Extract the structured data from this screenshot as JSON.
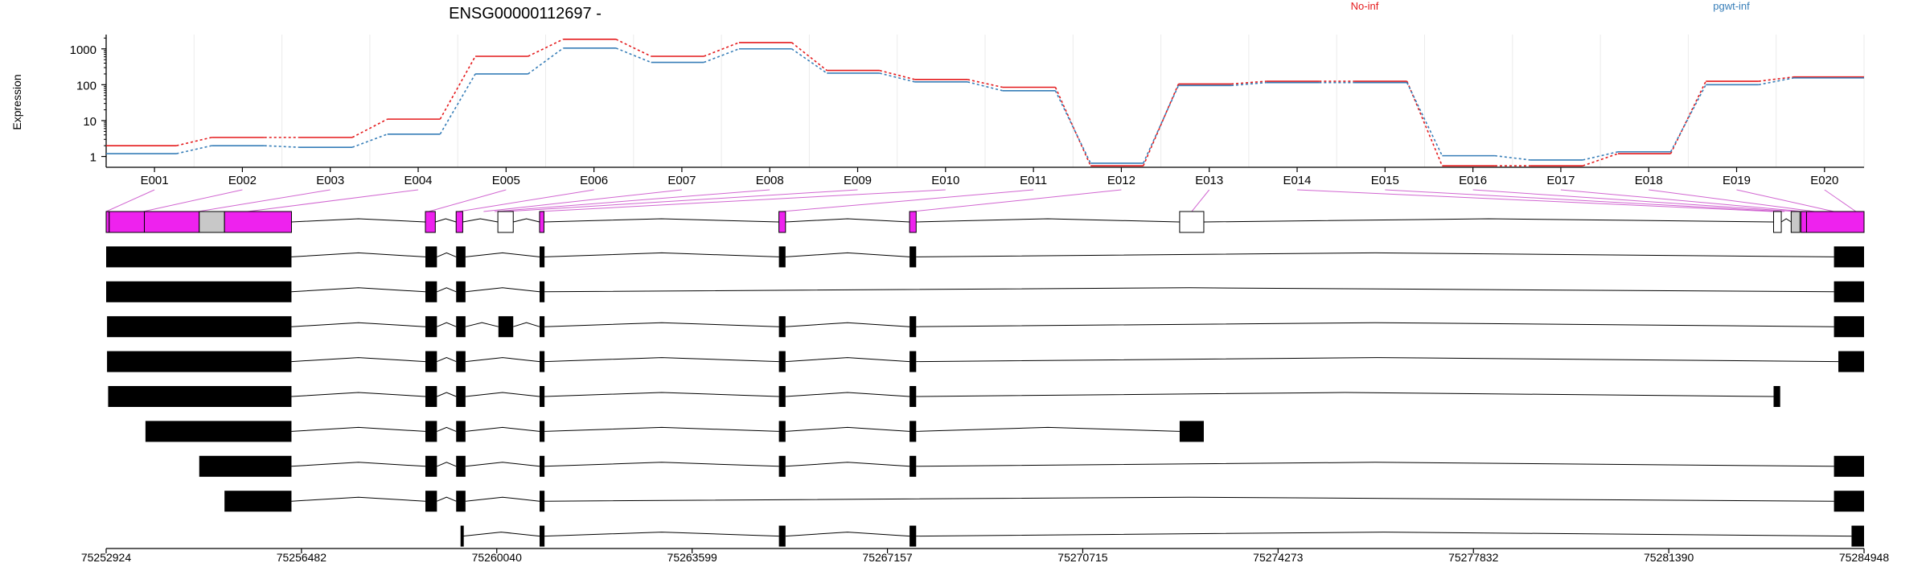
{
  "chart_data": {
    "type": "line",
    "title": "ENSG00000112697 -",
    "ylabel": "Expression",
    "yscale": "log",
    "yticks": [
      1,
      10,
      100,
      1000
    ],
    "ylim": [
      0.5,
      2500
    ],
    "categories": [
      "E001",
      "E002",
      "E003",
      "E004",
      "E005",
      "E006",
      "E007",
      "E008",
      "E009",
      "E010",
      "E011",
      "E012",
      "E013",
      "E014",
      "E015",
      "E016",
      "E017",
      "E018",
      "E019",
      "E020"
    ],
    "legend": {
      "placement": "top-right",
      "entries": [
        "No-inf",
        "pgwt-inf"
      ]
    },
    "series": [
      {
        "name": "No-inf",
        "color": "#e41a1c",
        "values": [
          2.0,
          3.4,
          3.4,
          11,
          620,
          1850,
          620,
          1500,
          250,
          140,
          85,
          0.55,
          105,
          125,
          125,
          0.55,
          0.55,
          1.2,
          125,
          165
        ]
      },
      {
        "name": "pgwt-inf",
        "color": "#377eb8",
        "values": [
          1.2,
          2.0,
          1.8,
          4.2,
          200,
          1050,
          420,
          1000,
          210,
          120,
          68,
          0.65,
          95,
          115,
          115,
          1.05,
          0.8,
          1.35,
          100,
          155
        ]
      }
    ],
    "gene_model": {
      "xlim": [
        75252924,
        75284948
      ],
      "xticks": [
        75252924,
        75256482,
        75260040,
        75263599,
        75267157,
        75270715,
        75274273,
        75277832,
        75281390,
        75284948
      ],
      "exon_bins": [
        {
          "start": 75252924,
          "end": 75252980,
          "state": "sig"
        },
        {
          "start": 75252980,
          "end": 75253620,
          "state": "sig"
        },
        {
          "start": 75253620,
          "end": 75254620,
          "state": "sig"
        },
        {
          "start": 75254620,
          "end": 75255080,
          "state": "none"
        },
        {
          "start": 75255080,
          "end": 75256300,
          "state": "sig"
        },
        {
          "start": 75258740,
          "end": 75258920,
          "state": "sig"
        },
        {
          "start": 75259300,
          "end": 75259420,
          "state": "sig"
        },
        {
          "start": 75260060,
          "end": 75260340,
          "state": "empty"
        },
        {
          "start": 75260820,
          "end": 75260900,
          "state": "sig"
        },
        {
          "start": 75265180,
          "end": 75265300,
          "state": "sig"
        },
        {
          "start": 75267560,
          "end": 75267680,
          "state": "sig"
        },
        {
          "start": 75272480,
          "end": 75272920,
          "state": "empty"
        },
        {
          "start": 75283300,
          "end": 75283440,
          "state": "empty"
        },
        {
          "start": 75283620,
          "end": 75283780,
          "state": "none"
        },
        {
          "start": 75283800,
          "end": 75283900,
          "state": "sig"
        },
        {
          "start": 75283900,
          "end": 75284948,
          "state": "sig"
        }
      ],
      "exon_label_anchor": [
        75252924,
        75253600,
        75254600,
        75255500,
        75258800,
        75259350,
        75259800,
        75260000,
        75260200,
        75260820,
        75265240,
        75267620,
        75272700,
        75283300,
        75283500,
        75283700,
        75283850,
        75284050,
        75284400,
        75284800
      ],
      "transcripts": [
        {
          "exons": [
            [
              75252924,
              75256300
            ],
            [
              75258740,
              75258950
            ],
            [
              75259300,
              75259470
            ],
            [
              75260820,
              75260910
            ],
            [
              75265180,
              75265300
            ],
            [
              75267560,
              75267680
            ],
            [
              75284400,
              75284948
            ]
          ]
        },
        {
          "exons": [
            [
              75252924,
              75256300
            ],
            [
              75258740,
              75258950
            ],
            [
              75259300,
              75259470
            ],
            [
              75260820,
              75260910
            ],
            [
              75284400,
              75284948
            ]
          ]
        },
        {
          "exons": [
            [
              75252940,
              75256300
            ],
            [
              75258740,
              75258950
            ],
            [
              75259300,
              75259470
            ],
            [
              75260070,
              75260340
            ],
            [
              75260820,
              75260910
            ],
            [
              75265180,
              75265300
            ],
            [
              75267560,
              75267680
            ],
            [
              75284400,
              75284948
            ]
          ]
        },
        {
          "exons": [
            [
              75252940,
              75256300
            ],
            [
              75258740,
              75258950
            ],
            [
              75259300,
              75259470
            ],
            [
              75260820,
              75260910
            ],
            [
              75265180,
              75265300
            ],
            [
              75267560,
              75267680
            ],
            [
              75284480,
              75284948
            ]
          ]
        },
        {
          "exons": [
            [
              75252960,
              75256300
            ],
            [
              75258740,
              75258950
            ],
            [
              75259300,
              75259470
            ],
            [
              75260820,
              75260910
            ],
            [
              75265180,
              75265300
            ],
            [
              75267560,
              75267680
            ],
            [
              75283300,
              75283420
            ]
          ]
        },
        {
          "exons": [
            [
              75253640,
              75256300
            ],
            [
              75258740,
              75258950
            ],
            [
              75259300,
              75259470
            ],
            [
              75260820,
              75260910
            ],
            [
              75265180,
              75265300
            ],
            [
              75267560,
              75267680
            ],
            [
              75272480,
              75272920
            ]
          ]
        },
        {
          "exons": [
            [
              75254620,
              75256300
            ],
            [
              75258740,
              75258950
            ],
            [
              75259300,
              75259470
            ],
            [
              75260820,
              75260910
            ],
            [
              75265180,
              75265300
            ],
            [
              75267560,
              75267680
            ],
            [
              75284400,
              75284948
            ]
          ]
        },
        {
          "exons": [
            [
              75255080,
              75256300
            ],
            [
              75258740,
              75258950
            ],
            [
              75259300,
              75259470
            ],
            [
              75260820,
              75260910
            ],
            [
              75284400,
              75284948
            ]
          ]
        },
        {
          "exons": [
            [
              75259380,
              75259420
            ],
            [
              75260820,
              75260910
            ],
            [
              75265180,
              75265300
            ],
            [
              75267560,
              75267680
            ],
            [
              75284720,
              75284948
            ]
          ]
        }
      ]
    }
  }
}
